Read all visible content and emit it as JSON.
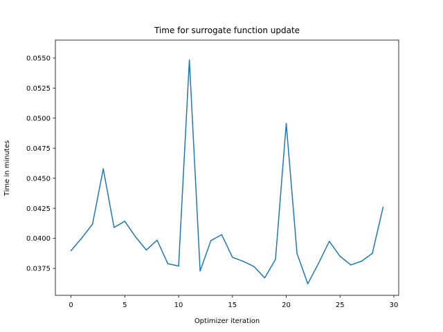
{
  "chart_data": {
    "type": "line",
    "title": "Time for surrogate function update",
    "xlabel": "Optimizer iteration",
    "ylabel": "Time in minutes",
    "xlim": [
      -1.45,
      30.45
    ],
    "ylim": [
      0.03526,
      0.05649
    ],
    "xticks": [
      0,
      5,
      10,
      15,
      20,
      25,
      30
    ],
    "xtick_labels": [
      "0",
      "5",
      "10",
      "15",
      "20",
      "25",
      "30"
    ],
    "yticks": [
      0.0375,
      0.04,
      0.0425,
      0.045,
      0.0475,
      0.05,
      0.0525,
      0.055
    ],
    "ytick_labels": [
      "0.0375",
      "0.0400",
      "0.0425",
      "0.0450",
      "0.0475",
      "0.0500",
      "0.0525",
      "0.0550"
    ],
    "grid": false,
    "series": [
      {
        "color": "#1f77b4",
        "x": [
          0,
          1,
          2,
          3,
          4,
          5,
          6,
          7,
          8,
          9,
          10,
          11,
          12,
          13,
          14,
          15,
          16,
          17,
          18,
          19,
          20,
          21,
          22,
          23,
          24,
          25,
          26,
          27,
          28,
          29
        ],
        "values": [
          0.03897,
          0.04003,
          0.04118,
          0.04578,
          0.04091,
          0.04142,
          0.04012,
          0.03903,
          0.03985,
          0.03789,
          0.0377,
          0.05483,
          0.03729,
          0.03981,
          0.04031,
          0.03843,
          0.03809,
          0.03766,
          0.03671,
          0.03825,
          0.04955,
          0.03875,
          0.03622,
          0.03792,
          0.03975,
          0.03851,
          0.03779,
          0.0381,
          0.03875,
          0.0426
        ]
      }
    ]
  }
}
